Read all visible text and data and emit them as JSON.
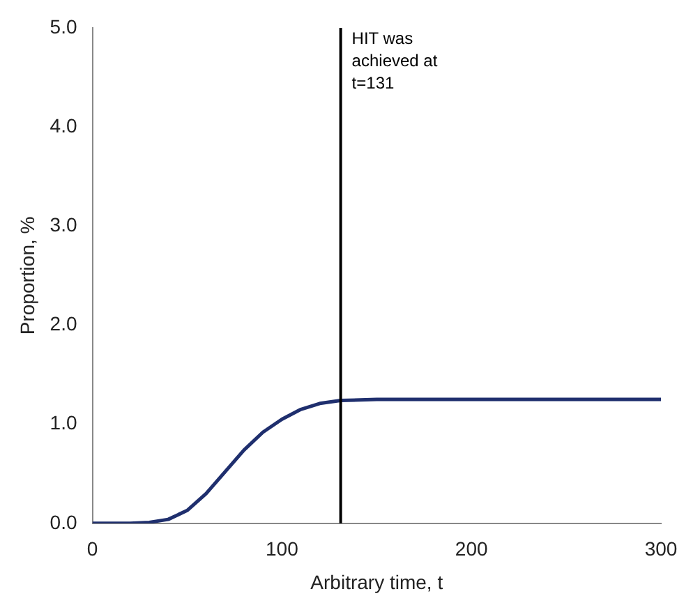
{
  "chart_data": {
    "type": "line",
    "xlabel": "Arbitrary time, t",
    "ylabel": "Proportion, %",
    "xlim": [
      0,
      300
    ],
    "xticks": [
      0,
      100,
      200,
      300
    ],
    "ylim": [
      0,
      5
    ],
    "yticks": [
      {
        "value": 0,
        "label": "0.0"
      },
      {
        "value": 1,
        "label": "1.0"
      },
      {
        "value": 2,
        "label": "2.0"
      },
      {
        "value": 3,
        "label": "3.0"
      },
      {
        "value": 4,
        "label": "4.0"
      },
      {
        "value": 5,
        "label": "5.0"
      }
    ],
    "x": [
      0,
      20,
      30,
      40,
      50,
      60,
      70,
      80,
      90,
      100,
      110,
      120,
      131,
      150,
      200,
      250,
      300
    ],
    "series": [
      {
        "color": "#1f2f6e",
        "values": [
          0,
          0,
          0.01,
          0.04,
          0.13,
          0.3,
          0.52,
          0.74,
          0.92,
          1.05,
          1.15,
          1.21,
          1.24,
          1.25,
          1.25,
          1.25,
          1.25
        ]
      }
    ],
    "ref_lines": [
      {
        "axis": "x",
        "value": 131,
        "label": "HIT was achieved at t=131",
        "color": "#000000"
      }
    ],
    "grid": false,
    "legend": false,
    "marker": "none",
    "line_style": "solid"
  }
}
